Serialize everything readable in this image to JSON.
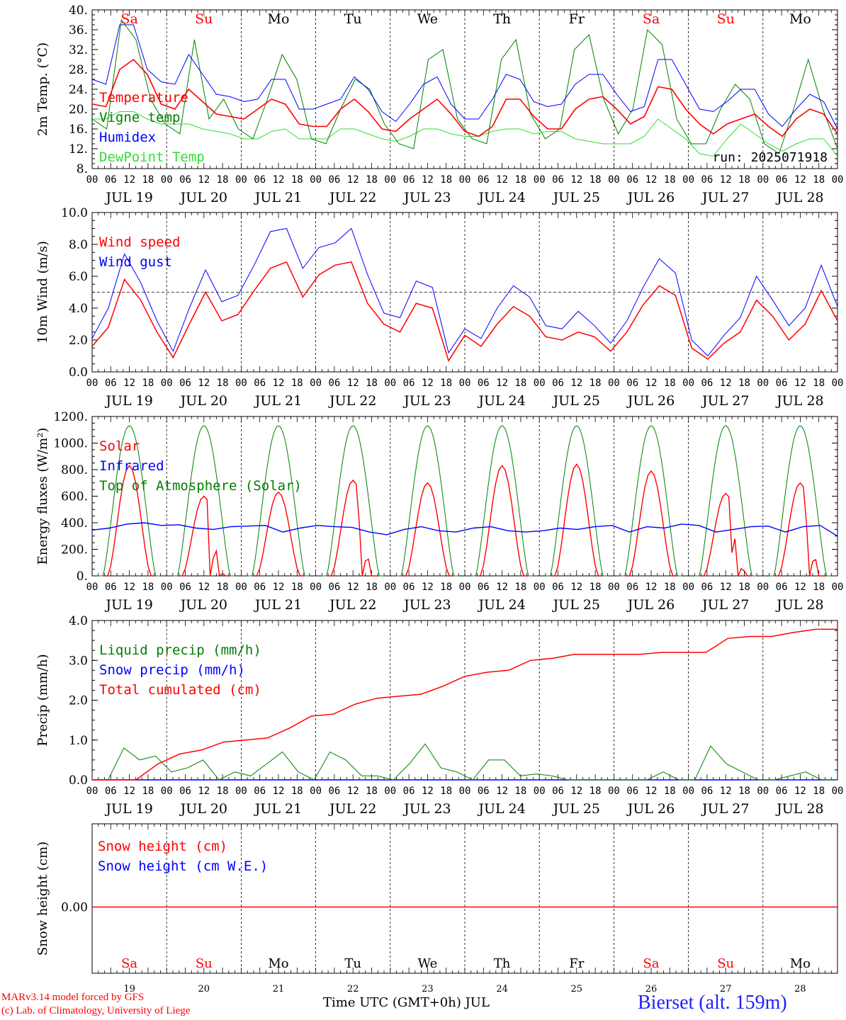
{
  "run_label": "run: 2025071918",
  "footer": {
    "credit_line_1": "MARv3.14 model forced by GFS",
    "credit_line_2": "(c) Lab. of Climatology, University of Liege",
    "xaxis_caption": "Time UTC (GMT+0h) JUL",
    "station": "Bierset (alt. 159m)"
  },
  "days": {
    "names": [
      "Sa",
      "Su",
      "Mo",
      "Tu",
      "We",
      "Th",
      "Fr",
      "Sa",
      "Su",
      "Mo"
    ],
    "weekend": [
      true,
      true,
      false,
      false,
      false,
      false,
      false,
      true,
      true,
      false
    ],
    "dates": [
      "JUL 19",
      "JUL 20",
      "JUL 21",
      "JUL 22",
      "JUL 23",
      "JUL 24",
      "JUL 25",
      "JUL 26",
      "JUL 27",
      "JUL 28"
    ],
    "day_numbers": [
      "19",
      "20",
      "21",
      "22",
      "23",
      "24",
      "25",
      "26",
      "27",
      "28"
    ],
    "hour_ticks": [
      "00",
      "06",
      "12",
      "18"
    ],
    "end_tick": "00"
  },
  "colors": {
    "red": "#ff0000",
    "green": "#008000",
    "blue": "#0000ff",
    "lightgreen": "#33dd33"
  },
  "chart_data": [
    {
      "id": "temperature",
      "type": "line",
      "ylabel": "2m Temp. (°C)",
      "ylim": [
        8,
        40
      ],
      "yticks": [
        "8.",
        "12.",
        "16.",
        "20.",
        "24.",
        "28.",
        "32.",
        "36.",
        "40."
      ],
      "x_unit": "hours since 2025-07-19 00 UTC, 6-hourly",
      "series": [
        {
          "name": "Temperature",
          "color": "red",
          "values": [
            21,
            20.5,
            28,
            30,
            27,
            21,
            20,
            24,
            21.5,
            19,
            18.5,
            18,
            20,
            22,
            21,
            17,
            16.5,
            16.5,
            20,
            22,
            19.5,
            16,
            15.5,
            18,
            20,
            22,
            19,
            15.5,
            14.5,
            16.5,
            22,
            22,
            18.5,
            16,
            16,
            20,
            22,
            22.5,
            20,
            17,
            18.5,
            24.5,
            24,
            20,
            17,
            15,
            17,
            18,
            19,
            16.5,
            14.5,
            18,
            20,
            19,
            15
          ]
        },
        {
          "name": "Vigne temp",
          "color": "green",
          "values": [
            18,
            16,
            38,
            34,
            22,
            17,
            15,
            34,
            18,
            22,
            16,
            14,
            22,
            31,
            26,
            14,
            13,
            20,
            26,
            24,
            17,
            13,
            12,
            30,
            32,
            18,
            14,
            13,
            30,
            34,
            19,
            14,
            16,
            32,
            35,
            22,
            15,
            20,
            36,
            33,
            18,
            13,
            13,
            20,
            25,
            22,
            13,
            11,
            20,
            30,
            20,
            12
          ]
        },
        {
          "name": "Humidex",
          "color": "blue",
          "values": [
            26,
            25,
            37,
            37,
            28,
            25.5,
            25,
            31,
            27,
            23,
            22.5,
            21.5,
            22,
            26,
            26,
            20,
            20,
            21,
            22,
            26.5,
            24,
            19.5,
            17.5,
            21,
            25,
            26.5,
            21,
            18,
            18,
            22,
            27,
            26,
            21.5,
            20.5,
            21,
            25,
            27,
            27,
            23,
            19.5,
            20.5,
            30,
            30,
            25,
            20,
            19.5,
            21.5,
            24,
            24,
            19,
            16.5,
            20,
            23,
            21.5,
            16
          ]
        },
        {
          "name": "DewPoint Temp",
          "color": "lightgreen",
          "values": [
            18,
            18,
            19.5,
            19.5,
            18,
            17,
            17,
            17,
            16,
            15.5,
            15,
            14,
            14,
            15.5,
            16,
            14,
            14,
            14,
            16,
            16,
            15,
            14,
            13.5,
            14.5,
            16,
            16,
            15,
            14.5,
            14.5,
            15.5,
            16,
            16,
            15,
            15.5,
            15.5,
            14,
            13.5,
            13,
            13,
            13,
            14.5,
            18,
            16,
            14,
            11,
            10.5,
            14,
            17,
            15,
            13,
            11.5,
            13,
            14,
            14,
            10.5
          ]
        }
      ]
    },
    {
      "id": "wind",
      "type": "line",
      "ylabel": "10m Wind (m/s)",
      "ylim": [
        0,
        10
      ],
      "yticks": [
        "0.0",
        "2.0",
        "4.0",
        "6.0",
        "8.0",
        "10.0"
      ],
      "reference_line": 5,
      "series": [
        {
          "name": "Wind speed",
          "color": "red",
          "values": [
            1.6,
            2.8,
            5.8,
            4.5,
            2.5,
            0.9,
            3,
            5,
            3.2,
            3.6,
            5.1,
            6.5,
            6.9,
            4.7,
            6.1,
            6.7,
            6.9,
            4.3,
            3,
            2.5,
            4.3,
            4,
            0.7,
            2.3,
            1.6,
            3,
            4.1,
            3.5,
            2.2,
            2,
            2.5,
            2.2,
            1.3,
            2.5,
            4.2,
            5.4,
            4.8,
            1.5,
            0.8,
            1.8,
            2.5,
            4.5,
            3.5,
            2,
            3,
            5.1,
            3.2
          ]
        },
        {
          "name": "Wind gust",
          "color": "blue",
          "values": [
            2.1,
            4,
            7.4,
            5.6,
            3.2,
            1.3,
            4,
            6.4,
            4.4,
            4.8,
            6.7,
            8.8,
            9,
            6.5,
            7.8,
            8.1,
            9,
            6.1,
            3.7,
            3.4,
            5.7,
            5.3,
            1.2,
            2.7,
            2.1,
            4,
            5.4,
            4.7,
            2.9,
            2.7,
            3.8,
            2.9,
            1.8,
            3.2,
            5.3,
            7.1,
            6.2,
            2,
            1,
            2.3,
            3.4,
            6,
            4.5,
            2.9,
            4,
            6.7,
            4.1
          ]
        }
      ]
    },
    {
      "id": "energy",
      "type": "line",
      "ylabel": "Energy fluxes (W/m²)",
      "ylim": [
        0,
        1200
      ],
      "yticks": [
        "0.",
        "200.",
        "400.",
        "600.",
        "800.",
        "1000.",
        "1200."
      ],
      "series": [
        {
          "name": "Solar",
          "color": "red",
          "peaks": [
            830,
            600,
            630,
            720,
            700,
            830,
            840,
            790,
            620,
            700
          ]
        },
        {
          "name": "Infrared",
          "color": "blue",
          "values": [
            345,
            360,
            390,
            400,
            380,
            385,
            360,
            350,
            370,
            375,
            380,
            330,
            360,
            380,
            370,
            365,
            330,
            310,
            350,
            370,
            340,
            330,
            360,
            370,
            340,
            330,
            340,
            360,
            350,
            370,
            380,
            330,
            370,
            360,
            390,
            380,
            330,
            350,
            370,
            375,
            330,
            370,
            380,
            300
          ]
        },
        {
          "name": "Top of Atmosphere (Solar)",
          "color": "green",
          "peak": 1130
        }
      ]
    },
    {
      "id": "precip",
      "type": "line",
      "ylabel": "Precip (mm/h)",
      "ylim": [
        0,
        4
      ],
      "yticks": [
        "0.0",
        "1.0",
        "2.0",
        "3.0",
        "4.0"
      ],
      "series": [
        {
          "name": "Liquid precip (mm/h)",
          "color": "green",
          "values": [
            0,
            0,
            0.8,
            0.5,
            0.6,
            0.2,
            0.3,
            0.5,
            0,
            0.2,
            0.1,
            0.4,
            0.7,
            0.2,
            0,
            0.7,
            0.5,
            0.1,
            0.1,
            0,
            0.4,
            0.9,
            0.3,
            0.2,
            0,
            0.5,
            0.5,
            0.1,
            0.15,
            0.1,
            0,
            0,
            0,
            0,
            0,
            0,
            0.2,
            0,
            0,
            0.85,
            0.4,
            0.2,
            0,
            0,
            0.1,
            0.2,
            0,
            0
          ]
        },
        {
          "name": "Snow precip (mm/h)",
          "color": "blue",
          "values": [
            0
          ]
        },
        {
          "name": "Total cumulated (cm)",
          "color": "red",
          "values": [
            0,
            0,
            0,
            0.4,
            0.65,
            0.75,
            0.95,
            1.0,
            1.05,
            1.3,
            1.6,
            1.65,
            1.9,
            2.05,
            2.1,
            2.15,
            2.35,
            2.6,
            2.7,
            2.75,
            3.0,
            3.05,
            3.15,
            3.15,
            3.15,
            3.15,
            3.2,
            3.2,
            3.2,
            3.55,
            3.6,
            3.6,
            3.7,
            3.78,
            3.78
          ]
        }
      ]
    },
    {
      "id": "snow",
      "type": "line",
      "ylabel": "Snow height (cm)",
      "yticks": [
        "0.00"
      ],
      "series": [
        {
          "name": "Snow height (cm)",
          "color": "red",
          "values": [
            0
          ]
        },
        {
          "name": "Snow height (cm W.E.)",
          "color": "blue",
          "values": [
            0
          ]
        }
      ]
    }
  ]
}
